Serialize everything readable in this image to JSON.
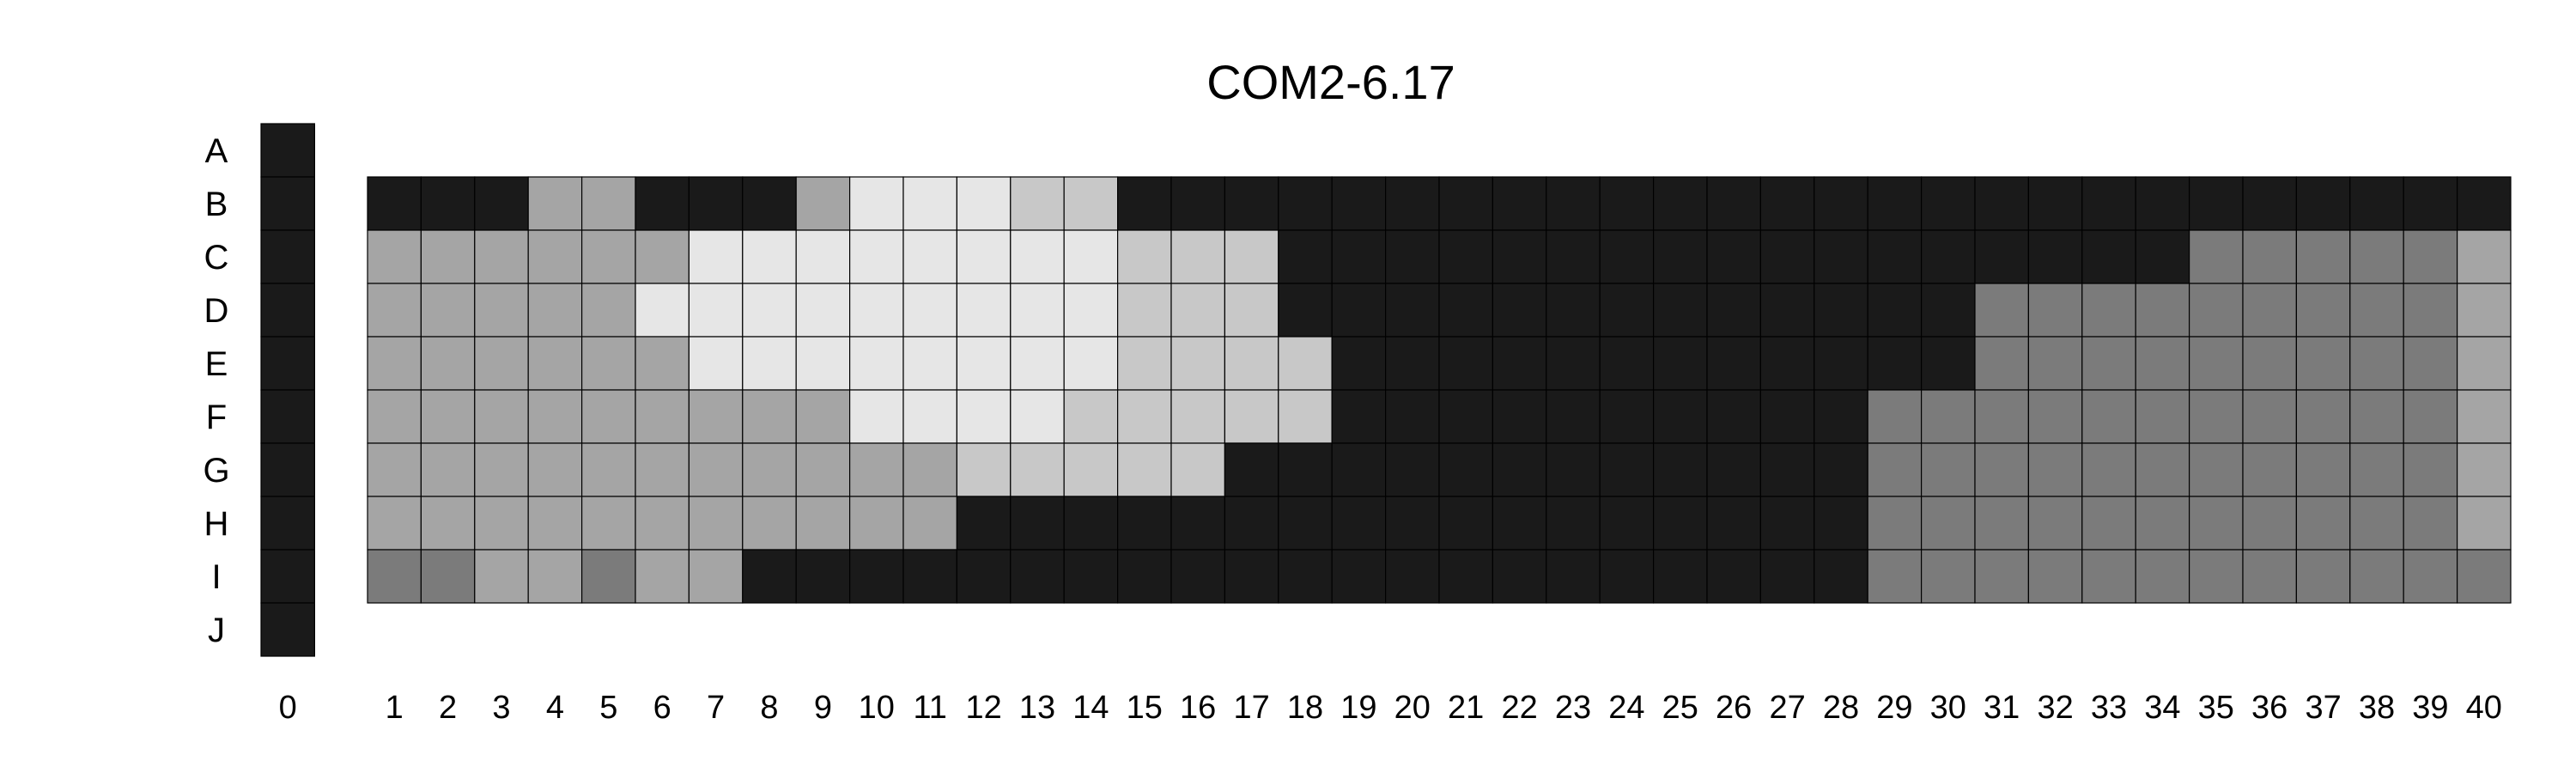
{
  "chart_data": {
    "type": "heatmap",
    "title": "COM2-6.17",
    "xlabel": "",
    "ylabel": "",
    "x_ticks": [
      "0",
      "1",
      "2",
      "3",
      "4",
      "5",
      "6",
      "7",
      "8",
      "9",
      "10",
      "11",
      "12",
      "13",
      "14",
      "15",
      "16",
      "17",
      "18",
      "19",
      "20",
      "21",
      "22",
      "23",
      "24",
      "25",
      "26",
      "27",
      "28",
      "29",
      "30",
      "31",
      "32",
      "33",
      "34",
      "35",
      "36",
      "37",
      "38",
      "39",
      "40"
    ],
    "y_ticks": [
      "A",
      "B",
      "C",
      "D",
      "E",
      "F",
      "G",
      "H",
      "I",
      "J"
    ],
    "legend": "none",
    "grid": true,
    "palette": {
      "K": "#1a1a1a",
      "D": "#7b7b7b",
      "M": "#a5a5a5",
      "L": "#c8c8c8",
      "W": "#e6e6e6"
    },
    "column_0": [
      "K",
      "K",
      "K",
      "K",
      "K",
      "K",
      "K",
      "K",
      "K",
      "K"
    ],
    "grid_rows": [
      {
        "row": "B",
        "cells": "KKKMMKKKMWWWLLKKKKKKKKKKKKKKKKKKKKKKKKKK"
      },
      {
        "row": "C",
        "cells": "MMMMMMWWWWWWWWLLLKKKKKKKKKKKKKKKKKDDDDDM"
      },
      {
        "row": "D",
        "cells": "MMMMMWWWWWWWWWLLLKKKKKKKKKKKKKDDDDDDDDDM"
      },
      {
        "row": "E",
        "cells": "MMMMMMWWWWWWWWLLLLKKKKKKKKKKKKDDDDDDDDDM"
      },
      {
        "row": "F",
        "cells": "MMMMMMMMMWWWWLLLLLKKKKKKKKKKDDDDDDDDDDDM"
      },
      {
        "row": "G",
        "cells": "MMMMMMMMMMMLLLLLKKKKKKKKKKKKDDDDDDDDDDDM"
      },
      {
        "row": "H",
        "cells": "MMMMMMMMMMMKKKKKKKKKKKKKKKKKDDDDDDDDDDDM"
      },
      {
        "row": "I",
        "cells": "DDMMDMMKKKKKKKKKKKKKKKKKKKKKDDDDDDDDDDDD"
      }
    ]
  }
}
